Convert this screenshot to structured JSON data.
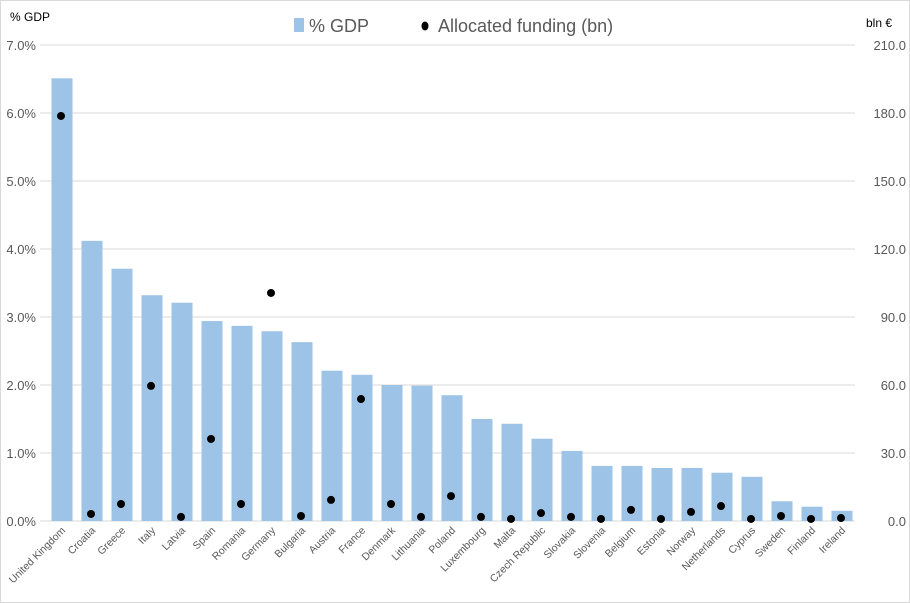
{
  "chart_data": {
    "type": "bar",
    "left_axis_title": "% GDP",
    "right_axis_title": "bln €",
    "legend_position": "top",
    "grid": true,
    "categories": [
      "United Kingdom",
      "Croatia",
      "Greece",
      "Italy",
      "Latvia",
      "Spain",
      "Romania",
      "Germany",
      "Bulgaria",
      "Austria",
      "France",
      "Denmark",
      "Lithuania",
      "Poland",
      "Luxembourg",
      "Malta",
      "Czech Republic",
      "Slovakia",
      "Slovenia",
      "Belgium",
      "Estonia",
      "Norway",
      "Netherlands",
      "Cyprus",
      "Sweden",
      "Finland",
      "Ireland"
    ],
    "series": [
      {
        "name": "% GDP",
        "type": "bar",
        "axis": "left",
        "color": "#9dc3e6",
        "values": [
          6.51,
          4.12,
          3.71,
          3.32,
          3.21,
          2.94,
          2.87,
          2.79,
          2.63,
          2.21,
          2.15,
          2.0,
          1.99,
          1.85,
          1.5,
          1.43,
          1.21,
          1.03,
          0.81,
          0.81,
          0.78,
          0.78,
          0.71,
          0.65,
          0.29,
          0.21,
          0.15
        ]
      },
      {
        "name": "Allocated funding (bn)",
        "type": "scatter",
        "axis": "right",
        "color": "#000000",
        "values": [
          178.7,
          3.1,
          7.5,
          59.6,
          1.8,
          36.2,
          7.5,
          100.6,
          2.2,
          9.3,
          53.8,
          7.5,
          1.8,
          11.0,
          1.8,
          0.9,
          3.5,
          1.8,
          0.9,
          4.9,
          0.9,
          4.0,
          6.6,
          0.9,
          2.2,
          0.9,
          1.3
        ]
      }
    ],
    "left_axis": {
      "min": 0,
      "max": 7,
      "ticks": [
        "0.0%",
        "1.0%",
        "2.0%",
        "3.0%",
        "4.0%",
        "5.0%",
        "6.0%",
        "7.0%"
      ]
    },
    "right_axis": {
      "min": 0,
      "max": 210,
      "ticks": [
        "0.0",
        "30.0",
        "60.0",
        "90.0",
        "120.0",
        "150.0",
        "180.0",
        "210.0"
      ]
    }
  }
}
